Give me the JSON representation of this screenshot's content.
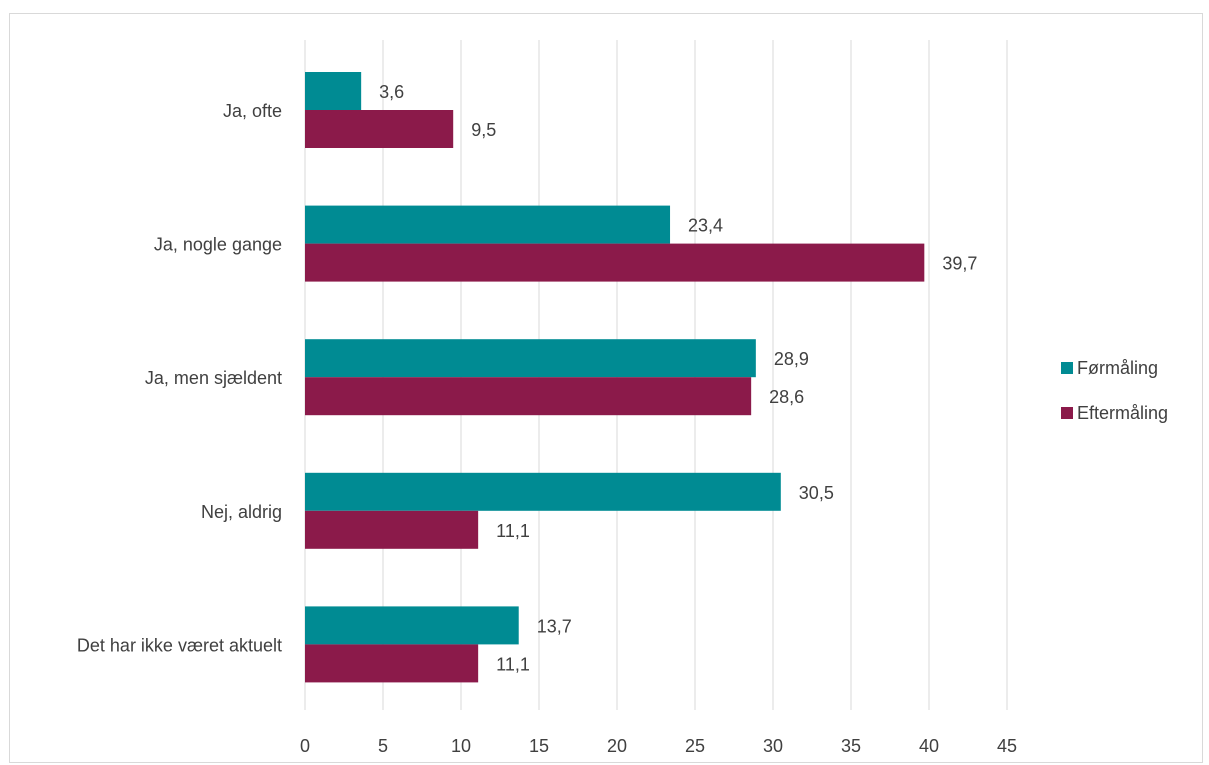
{
  "chart_data": {
    "type": "bar",
    "orientation": "horizontal",
    "categories": [
      "Ja, ofte",
      "Ja, nogle gange",
      "Ja, men sjældent",
      "Nej, aldrig",
      "Det har ikke været aktuelt"
    ],
    "series": [
      {
        "name": "Førmåling",
        "color": "#008B93",
        "values": [
          3.6,
          23.4,
          28.9,
          30.5,
          13.7
        ],
        "labels": [
          "3,6",
          "23,4",
          "28,9",
          "30,5",
          "13,7"
        ]
      },
      {
        "name": "Eftermåling",
        "color": "#8B1A4A",
        "values": [
          9.5,
          39.7,
          28.6,
          11.1,
          11.1
        ],
        "labels": [
          "9,5",
          "39,7",
          "28,6",
          "11,1",
          "11,1"
        ]
      }
    ],
    "xlim": [
      0,
      45
    ],
    "xticks": [
      "0",
      "5",
      "10",
      "15",
      "20",
      "25",
      "30",
      "35",
      "40",
      "45"
    ],
    "grid": "vertical",
    "legend": "right"
  }
}
